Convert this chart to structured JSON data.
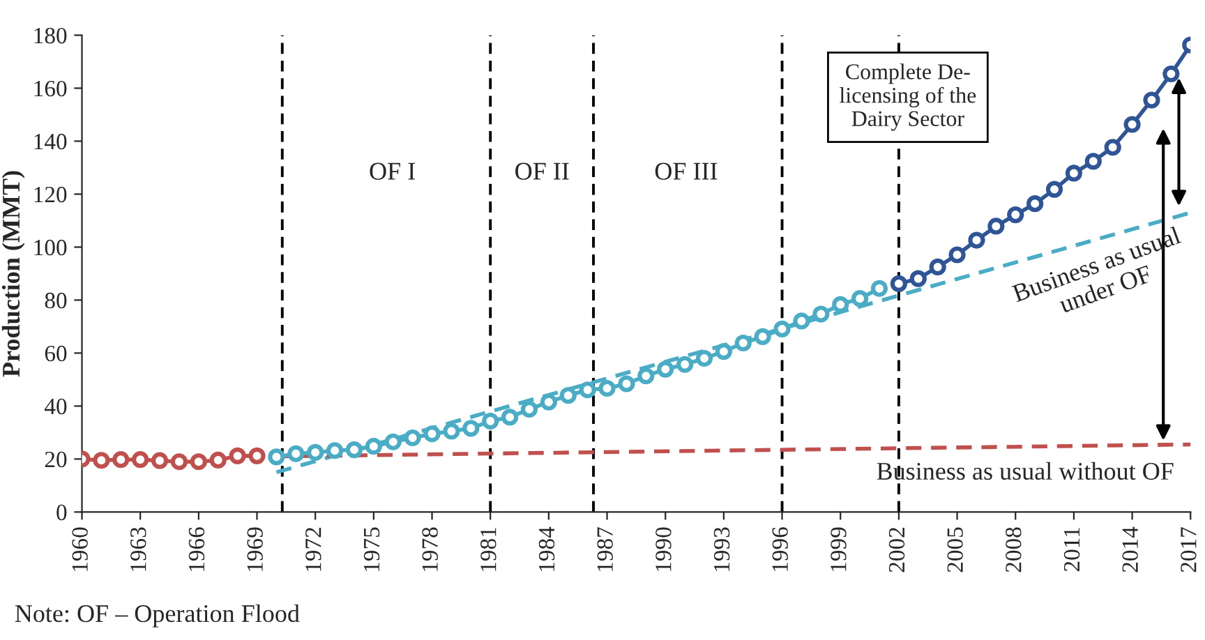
{
  "chart_data": {
    "type": "line",
    "ylabel": "Production (MMT)",
    "xlim": [
      1960,
      2017
    ],
    "xticks": [
      1960,
      1963,
      1966,
      1969,
      1972,
      1975,
      1978,
      1981,
      1984,
      1987,
      1990,
      1993,
      1996,
      1999,
      2002,
      2005,
      2008,
      2011,
      2014,
      2017
    ],
    "ylim": [
      0,
      180
    ],
    "yticks": [
      0,
      20,
      40,
      60,
      80,
      100,
      120,
      140,
      160,
      180
    ],
    "grid": false,
    "marker": "circle",
    "line_style": "solid",
    "series": [
      {
        "color": "#c0504d",
        "x": [
          1960,
          1961,
          1962,
          1963,
          1964,
          1965,
          1966,
          1967,
          1968,
          1969
        ],
        "values": [
          20,
          19.5,
          19.8,
          19.8,
          19.4,
          19,
          19,
          19.6,
          21.2,
          21.2
        ]
      },
      {
        "color": "#4bacc6",
        "x": [
          1970,
          1971,
          1972,
          1973,
          1974,
          1975,
          1976,
          1977,
          1978,
          1979,
          1980,
          1981,
          1982,
          1983,
          1984,
          1985,
          1986,
          1987,
          1988,
          1989,
          1990,
          1991,
          1992,
          1993,
          1994,
          1995,
          1996,
          1997,
          1998,
          1999,
          2000,
          2001
        ],
        "values": [
          20.8,
          22,
          22.5,
          23.2,
          23.5,
          24.8,
          26.5,
          28,
          29.5,
          30.5,
          31.6,
          34.3,
          35.8,
          38.8,
          41.5,
          44,
          46.1,
          46.7,
          48.4,
          51.4,
          53.9,
          55.7,
          58,
          60.6,
          63.8,
          66.2,
          69.1,
          72.1,
          74.7,
          78.3,
          80.6,
          84.4
        ]
      },
      {
        "color": "#2f5597",
        "x": [
          2002,
          2003,
          2004,
          2005,
          2006,
          2007,
          2008,
          2009,
          2010,
          2011,
          2012,
          2013,
          2014,
          2015,
          2016,
          2017
        ],
        "values": [
          86.2,
          88.1,
          92.5,
          97.1,
          102.6,
          107.9,
          112.2,
          116.4,
          121.8,
          127.9,
          132.4,
          137.7,
          146.3,
          155.5,
          165.4,
          176.3
        ]
      },
      {
        "type": "line",
        "color": "#4bacc6",
        "marker": "none",
        "line_style": "dashed",
        "x": [
          1970,
          2017
        ],
        "values": [
          15,
          113
        ]
      },
      {
        "type": "line",
        "color": "#c0504d",
        "marker": "none",
        "line_style": "dashed",
        "x": [
          1970,
          2017
        ],
        "values": [
          21,
          25.5
        ]
      }
    ],
    "ref_lines": [
      {
        "axis": "x",
        "value": 1970.3,
        "color": "#000000",
        "line_style": "dashed"
      },
      {
        "axis": "x",
        "value": 1981,
        "color": "#000000",
        "line_style": "dashed"
      },
      {
        "axis": "x",
        "value": 1986.3,
        "color": "#000000",
        "line_style": "dashed"
      },
      {
        "axis": "x",
        "value": 1996,
        "color": "#000000",
        "line_style": "dashed"
      },
      {
        "axis": "x",
        "value": 2002,
        "color": "#000000",
        "line_style": "dashed"
      }
    ],
    "annotations": [
      "OF I",
      "OF II",
      "OF III",
      "Complete De-\nlicensing of the\nDairy Sector",
      {
        "text": "Business as usual\nunder OF",
        "x": 2012,
        "y": 102.6
      },
      {
        "text": "Business as usual without OF",
        "x": 2008.5,
        "y": 24.7
      },
      "Note: OF – Operation Flood"
    ]
  }
}
